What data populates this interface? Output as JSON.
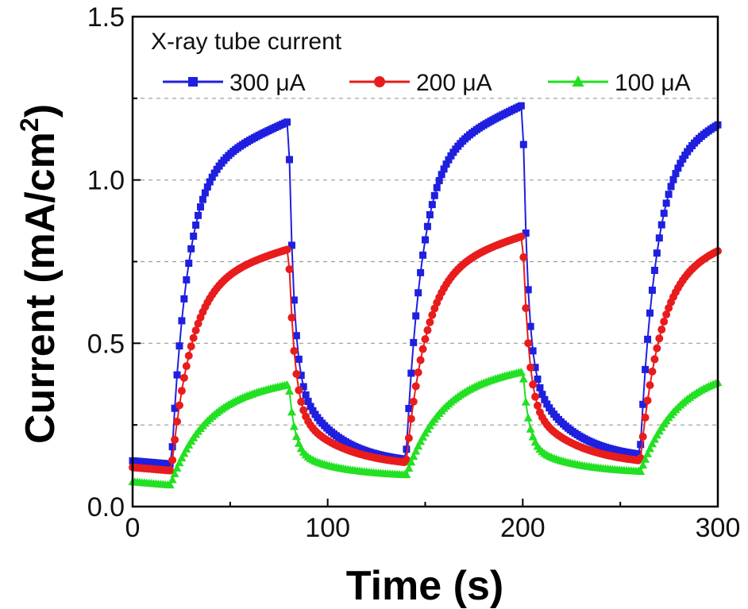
{
  "chart_data": {
    "type": "line",
    "xlabel": "Time (s)",
    "ylabel_main": "Current (mA/cm",
    "ylabel_sup": "2",
    "ylabel_close": ")",
    "xlim": [
      0,
      300
    ],
    "ylim": [
      0,
      1.5
    ],
    "x_ticks": [
      {
        "value": 0,
        "label": "0"
      },
      {
        "value": 100,
        "label": "100"
      },
      {
        "value": 200,
        "label": "200"
      },
      {
        "value": 300,
        "label": "300"
      }
    ],
    "y_ticks": [
      {
        "value": 0.0,
        "label": "0.0"
      },
      {
        "value": 0.5,
        "label": "0.5"
      },
      {
        "value": 1.0,
        "label": "1.0"
      },
      {
        "value": 1.5,
        "label": "1.5"
      }
    ],
    "grid_y": [
      0.25,
      0.5,
      0.75,
      1.0,
      1.25
    ],
    "legend_title": "X-ray tube current",
    "legend_position": "top",
    "series": [
      {
        "name": "300 μA",
        "color": "#1f1fe0",
        "marker": "square",
        "levels": {
          "base": [
            0.14,
            0.13,
            0.145
          ],
          "plateau": [
            1.18,
            1.23,
            1.23
          ]
        }
      },
      {
        "name": "200 μA",
        "color": "#e81c1c",
        "marker": "circle",
        "levels": {
          "base": [
            0.12,
            0.12,
            0.125
          ],
          "plateau": [
            0.79,
            0.83,
            0.83
          ]
        }
      },
      {
        "name": "100 μA",
        "color": "#22e022",
        "marker": "triangle",
        "levels": {
          "base": [
            0.075,
            0.09,
            0.1
          ],
          "plateau": [
            0.38,
            0.42,
            0.42
          ]
        }
      }
    ],
    "on_intervals": [
      [
        20,
        80
      ],
      [
        140,
        200
      ],
      [
        260,
        300
      ]
    ]
  }
}
